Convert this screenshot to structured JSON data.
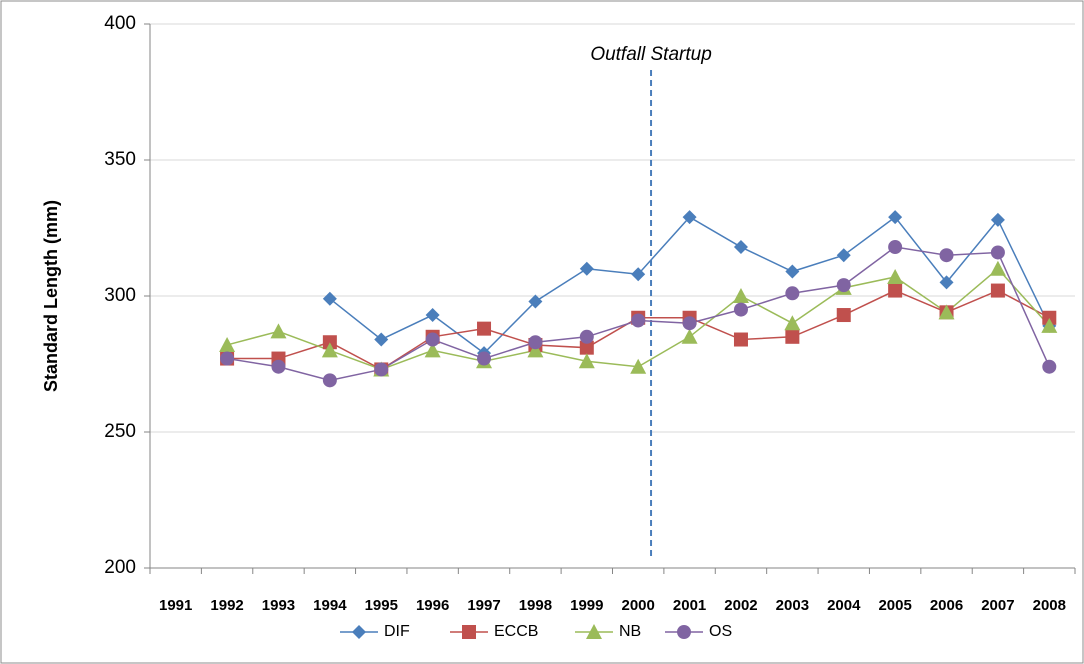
{
  "chart_data": {
    "type": "line",
    "y_label": "Standard Length (mm)",
    "annotation": "Outfall Startup",
    "categories": [
      "1991",
      "1992",
      "1993",
      "1994",
      "1995",
      "1996",
      "1997",
      "1998",
      "1999",
      "2000",
      "2001",
      "2002",
      "2003",
      "2004",
      "2005",
      "2006",
      "2007",
      "2008"
    ],
    "series": [
      {
        "name": "DIF",
        "color": "#4a7ebb",
        "marker": "diamond",
        "values": [
          null,
          null,
          null,
          299,
          284,
          293,
          279,
          298,
          310,
          308,
          329,
          318,
          309,
          315,
          329,
          305,
          328,
          289
        ]
      },
      {
        "name": "ECCB",
        "color": "#c0504d",
        "marker": "square",
        "values": [
          null,
          277,
          277,
          283,
          273,
          285,
          288,
          282,
          281,
          292,
          292,
          284,
          285,
          293,
          302,
          294,
          302,
          292
        ]
      },
      {
        "name": "NB",
        "color": "#9bbb59",
        "marker": "triangle",
        "values": [
          null,
          282,
          287,
          280,
          273,
          280,
          276,
          280,
          276,
          274,
          285,
          300,
          290,
          303,
          307,
          294,
          310,
          289
        ]
      },
      {
        "name": "OS",
        "color": "#8064a2",
        "marker": "circle",
        "values": [
          null,
          277,
          274,
          269,
          273,
          284,
          277,
          283,
          285,
          291,
          290,
          295,
          301,
          304,
          318,
          315,
          316,
          274
        ]
      }
    ],
    "ylim": [
      200,
      400
    ],
    "yticks": [
      200,
      250,
      300,
      350,
      400
    ],
    "grid": true,
    "legend": "bottom"
  }
}
